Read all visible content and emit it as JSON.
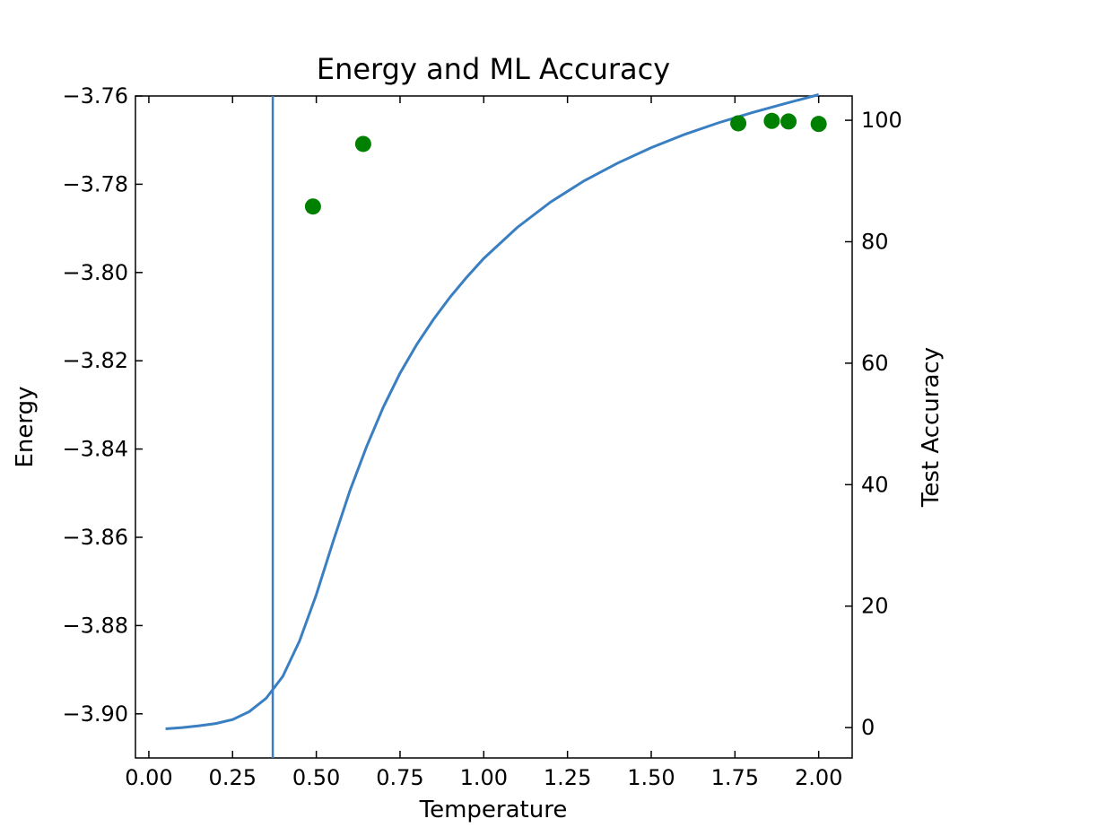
{
  "chart_data": {
    "type": "line",
    "title": "Energy and ML Accuracy",
    "xlabel": "Temperature",
    "ylabel": "Energy",
    "y2label": "Test Accuracy",
    "xlim": [
      -0.04,
      2.1
    ],
    "ylim": [
      -3.91,
      -3.76
    ],
    "y2lim": [
      -5,
      104
    ],
    "xticks": [
      0.0,
      0.25,
      0.5,
      0.75,
      1.0,
      1.25,
      1.5,
      1.75,
      2.0
    ],
    "xtick_labels": [
      "0.00",
      "0.25",
      "0.50",
      "0.75",
      "1.00",
      "1.25",
      "1.50",
      "1.75",
      "2.00"
    ],
    "yticks": [
      -3.76,
      -3.78,
      -3.8,
      -3.82,
      -3.84,
      -3.86,
      -3.88,
      -3.9
    ],
    "ytick_labels": [
      "−3.76",
      "−3.78",
      "−3.80",
      "−3.82",
      "−3.84",
      "−3.86",
      "−3.88",
      "−3.90"
    ],
    "y2ticks": [
      0,
      20,
      40,
      60,
      80,
      100
    ],
    "y2tick_labels": [
      "0",
      "20",
      "40",
      "60",
      "80",
      "100"
    ],
    "grid": false,
    "vline_x": 0.37,
    "series": [
      {
        "axis": "left",
        "kind": "line",
        "color": "#3a7fc1",
        "x": [
          0.05,
          0.1,
          0.15,
          0.2,
          0.25,
          0.3,
          0.35,
          0.4,
          0.45,
          0.5,
          0.55,
          0.6,
          0.65,
          0.7,
          0.75,
          0.8,
          0.85,
          0.9,
          0.95,
          1.0,
          1.1,
          1.2,
          1.3,
          1.4,
          1.5,
          1.6,
          1.7,
          1.8,
          1.9,
          2.0
        ],
        "y": [
          -3.9034,
          -3.9031,
          -3.9027,
          -3.9022,
          -3.9013,
          -3.8995,
          -3.8965,
          -3.8915,
          -3.8835,
          -3.873,
          -3.861,
          -3.8495,
          -3.8395,
          -3.8305,
          -3.8228,
          -3.8163,
          -3.8106,
          -3.8055,
          -3.801,
          -3.7968,
          -3.7898,
          -3.784,
          -3.7792,
          -3.7752,
          -3.7717,
          -3.7687,
          -3.7661,
          -3.7638,
          -3.7617,
          -3.7597
        ]
      },
      {
        "axis": "right",
        "kind": "scatter",
        "color": "#008000",
        "x": [
          0.49,
          0.64,
          1.76,
          1.86,
          1.91,
          2.0
        ],
        "y": [
          85.8,
          96.1,
          99.5,
          99.9,
          99.8,
          99.4
        ]
      }
    ]
  }
}
